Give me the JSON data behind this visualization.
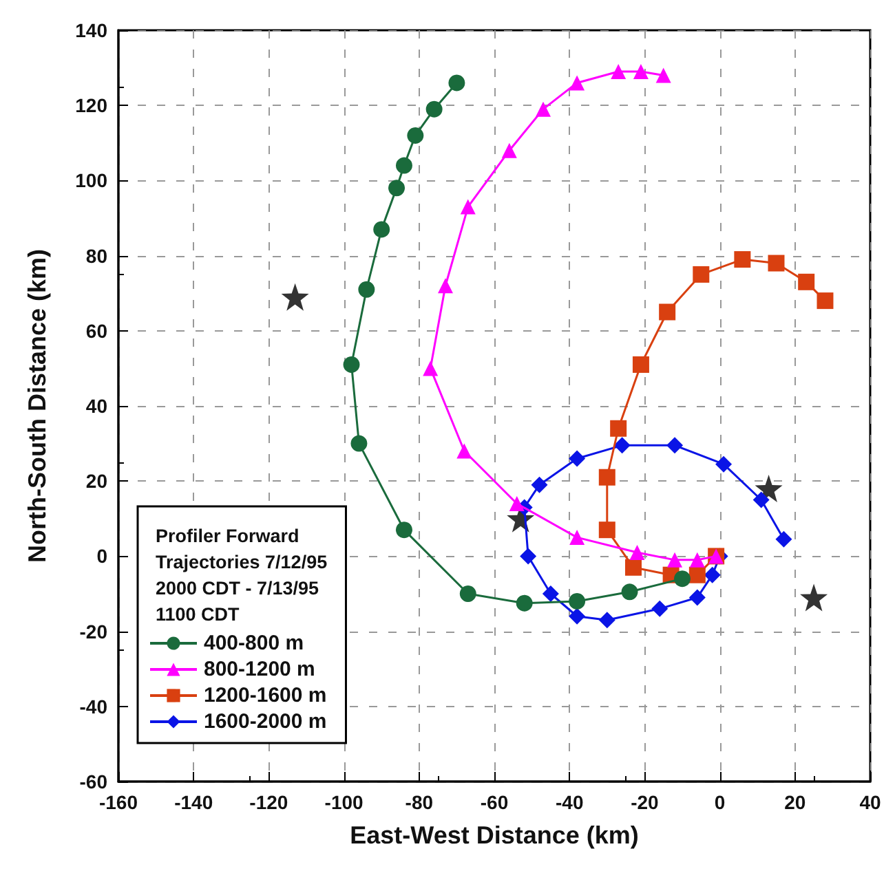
{
  "chart_data": {
    "type": "line",
    "xlabel": "East-West Distance (km)",
    "ylabel": "North-South Distance (km)",
    "legend_title": "Profiler Forward Trajectories 7/12/95 2000 CDT - 7/13/95 1100 CDT",
    "xlim": [
      -160,
      40
    ],
    "xticks": [
      -160,
      -140,
      -120,
      -100,
      -80,
      -60,
      -40,
      -20,
      0,
      20,
      40
    ],
    "ylim": [
      -60,
      140
    ],
    "yticks": [
      -60,
      -40,
      -20,
      0,
      20,
      40,
      60,
      80,
      100,
      120,
      140
    ],
    "grid": true,
    "legend": "bottom left",
    "line_style": "solid",
    "series": [
      {
        "name": "400-800 m",
        "color": "#1a6b3c",
        "marker": "circle",
        "x": [
          -10,
          -24,
          -38,
          -52,
          -67,
          -84,
          -96,
          -98,
          -94,
          -90,
          -86,
          -84,
          -81,
          -76,
          -70
        ],
        "values": [
          -6,
          -9.5,
          -12,
          -12.5,
          -10,
          7,
          30,
          51,
          71,
          87,
          98,
          104,
          112,
          119,
          126
        ]
      },
      {
        "name": "800-1200 m",
        "color": "#ff00ff",
        "marker": "triangle",
        "x": [
          -1,
          -6,
          -12,
          -22,
          -38,
          -54,
          -68,
          -77,
          -73,
          -67,
          -56,
          -47,
          -38,
          -27,
          -21,
          -15
        ],
        "values": [
          0,
          -1,
          -1,
          1,
          5,
          14,
          28,
          50,
          72,
          93,
          108,
          119,
          126,
          129,
          129,
          128
        ],
        "type": "line"
      },
      {
        "name": "1200-1600 m",
        "color": "#d94010",
        "marker": "square",
        "x": [
          -1,
          -6,
          -13,
          -23,
          -30,
          -30,
          -27,
          -21,
          -14,
          -5,
          6,
          15,
          23,
          28
        ],
        "values": [
          0,
          -5,
          -5,
          -3,
          7,
          21,
          34,
          51,
          65,
          75,
          79,
          78,
          73,
          68
        ]
      },
      {
        "name": "1600-2000 m",
        "color": "#0a14e6",
        "marker": "diamond",
        "x": [
          0,
          -2,
          -6,
          -16,
          -30,
          -38,
          -45,
          -51,
          -52,
          -48,
          -38,
          -26,
          -12,
          1,
          11,
          17
        ],
        "values": [
          0,
          -5,
          -11,
          -14,
          -17,
          -16,
          -10,
          0,
          13,
          19,
          26,
          29.5,
          29.5,
          24.5,
          15,
          4.5
        ]
      },
      {
        "type": "scatter",
        "color": "#000000",
        "marker": "star",
        "x": [
          -113,
          -53,
          13,
          25
        ],
        "values": [
          69,
          10,
          18,
          -11
        ]
      }
    ]
  }
}
